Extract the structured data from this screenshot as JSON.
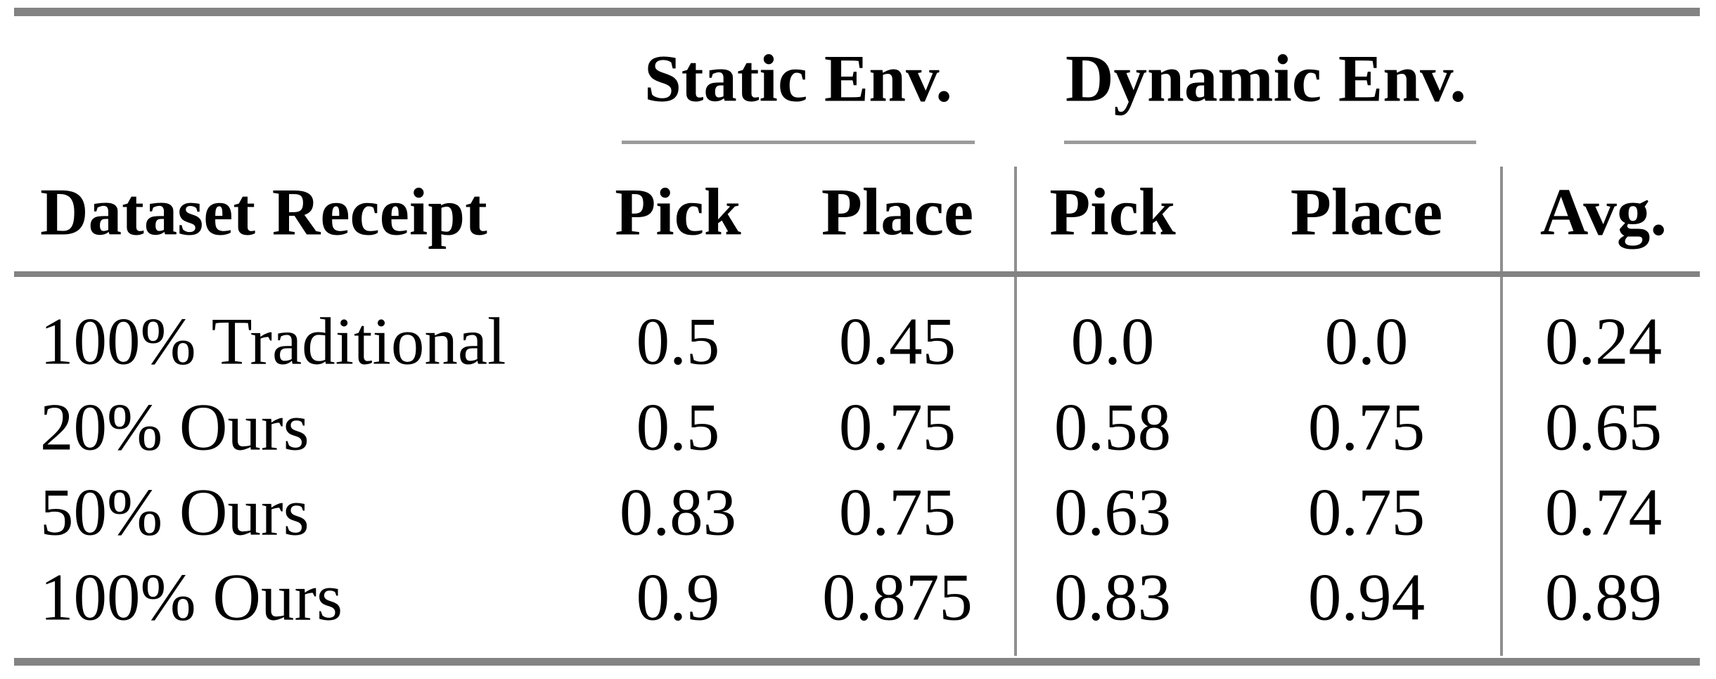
{
  "colors": {
    "background": "#ffffff",
    "text": "#000000",
    "rule_heavy": "#838383",
    "rule_group_underline": "#9b9b9b",
    "column_separator": "#8f8f8f"
  },
  "table": {
    "group_headers": [
      {
        "label": "Static Env."
      },
      {
        "label": "Dynamic Env."
      }
    ],
    "column_headers": {
      "row_label": "Dataset Receipt",
      "static_pick": "Pick",
      "static_place": "Place",
      "dynamic_pick": "Pick",
      "dynamic_place": "Place",
      "avg": "Avg."
    },
    "rows": [
      {
        "label": "100% Traditional",
        "values": [
          "0.5",
          "0.45",
          "0.0",
          "0.0",
          "0.24"
        ]
      },
      {
        "label": "20% Ours",
        "values": [
          "0.5",
          "0.75",
          "0.58",
          "0.75",
          "0.65"
        ]
      },
      {
        "label": "50% Ours",
        "values": [
          "0.83",
          "0.75",
          "0.63",
          "0.75",
          "0.74"
        ]
      },
      {
        "label": "100% Ours",
        "values": [
          "0.9",
          "0.875",
          "0.83",
          "0.94",
          "0.89"
        ]
      }
    ]
  },
  "chart_data": {
    "type": "table",
    "columns": [
      "Dataset Receipt",
      "Static Env. Pick",
      "Static Env. Place",
      "Dynamic Env. Pick",
      "Dynamic Env. Place",
      "Avg."
    ],
    "rows": [
      [
        "100% Traditional",
        0.5,
        0.45,
        0.0,
        0.0,
        0.24
      ],
      [
        "20% Ours",
        0.5,
        0.75,
        0.58,
        0.75,
        0.65
      ],
      [
        "50% Ours",
        0.83,
        0.75,
        0.63,
        0.75,
        0.74
      ],
      [
        "100% Ours",
        0.9,
        0.875,
        0.83,
        0.94,
        0.89
      ]
    ]
  }
}
